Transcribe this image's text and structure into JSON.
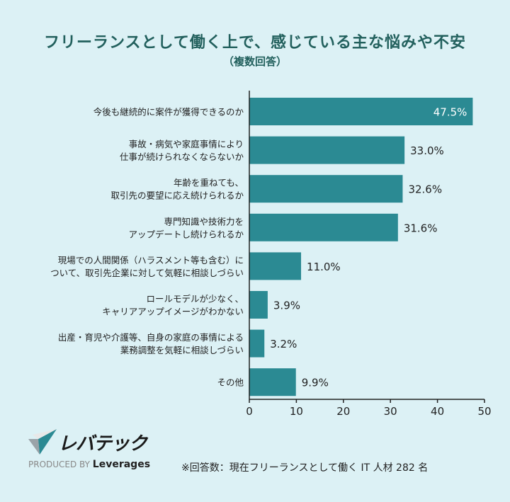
{
  "chart_data": {
    "type": "bar",
    "orientation": "horizontal",
    "title": "フリーランスとして働く上で、感じている主な悩みや不安",
    "subtitle": "（複数回答）",
    "categories": [
      [
        "今後も継続的に案件が獲得できるのか"
      ],
      [
        "事故・病気や家庭事情により",
        "仕事が続けられなくならないか"
      ],
      [
        "年齢を重ねても、",
        "取引先の要望に応え続けられるか"
      ],
      [
        "専門知識や技術力を",
        "アップデートし続けられるか"
      ],
      [
        "現場での人間関係（ハラスメント等も含む）に",
        "ついて、取引先企業に対して気軽に相談しづらい"
      ],
      [
        "ロールモデルが少なく、",
        "キャリアアップイメージがわかない"
      ],
      [
        "出産・育児や介護等、自身の家庭の事情による",
        "業務調整を気軽に相談しづらい"
      ],
      [
        "その他"
      ]
    ],
    "values": [
      47.5,
      33.0,
      32.6,
      31.6,
      11.0,
      3.9,
      3.2,
      9.9
    ],
    "value_labels": [
      "47.5%",
      "33.0%",
      "32.6%",
      "31.6%",
      "11.0%",
      "3.9%",
      "3.2%",
      "9.9%"
    ],
    "xlim": [
      0,
      50
    ],
    "xticks": [
      "0",
      "10",
      "20",
      "30",
      "40",
      "50"
    ],
    "grid": false,
    "bar_color": "#2b8a93",
    "title_color": "#22605d",
    "background": "#dcf1f5"
  },
  "footer": {
    "logo_text": "レバテック",
    "produced_by": "PRODUCED BY",
    "brand": "Leverages",
    "note": "※回答数：現在フリーランスとして働く IT 人材 282 名"
  }
}
